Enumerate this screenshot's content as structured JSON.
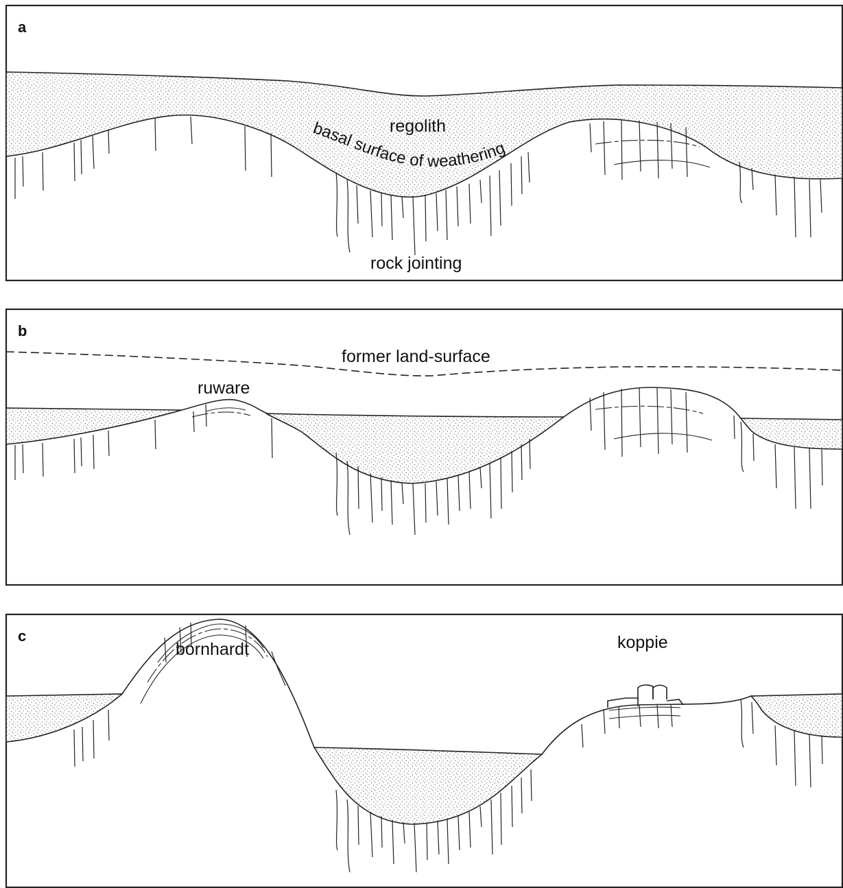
{
  "panels": [
    {
      "letter": "a",
      "labels": {
        "regolith": "regolith",
        "basal_surface": "basal surface of weathering",
        "rock_jointing": "rock jointing"
      }
    },
    {
      "letter": "b",
      "labels": {
        "former_land_surface": "former land-surface",
        "ruware": "ruware"
      }
    },
    {
      "letter": "c",
      "labels": {
        "bornhardt": "bornhardt",
        "koppie": "koppie"
      }
    }
  ],
  "colors": {
    "ink": "#222222",
    "stipple": "#555555",
    "background": "#ffffff"
  }
}
